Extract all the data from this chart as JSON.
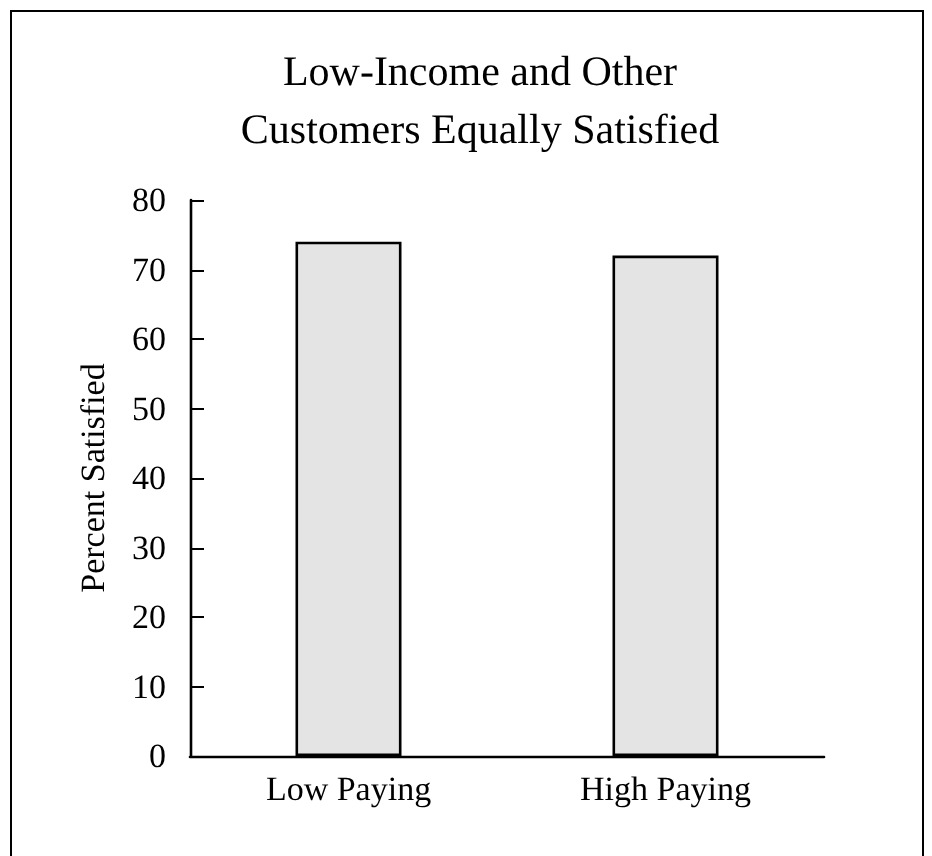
{
  "chart_data": {
    "type": "bar",
    "title": "Low-Income and Other\nCustomers Equally Satisfied",
    "categories": [
      "Low Paying",
      "High Paying"
    ],
    "values": [
      74,
      72
    ],
    "color": "#e4e4e4",
    "ylabel": "Percent Satisfied",
    "ylim": [
      0,
      80
    ],
    "yticks": [
      0,
      10,
      20,
      30,
      40,
      50,
      60,
      70,
      80
    ],
    "grid": false
  }
}
